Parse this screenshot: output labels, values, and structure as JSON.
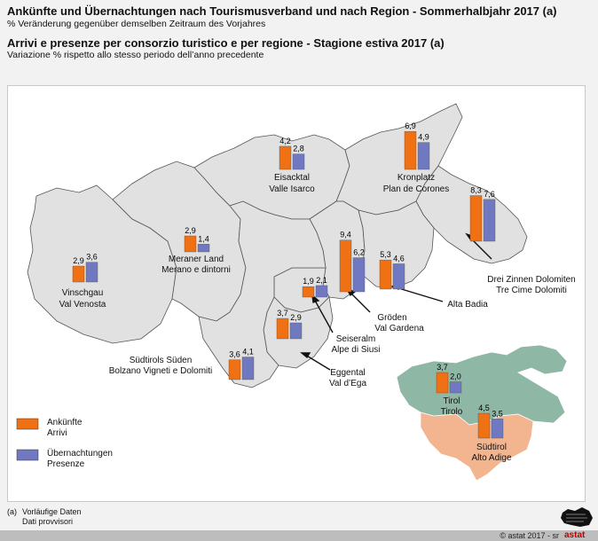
{
  "header": {
    "title_de": "Ankünfte und Übernachtungen nach Tourismusverband und nach Region - Sommerhalbjahr 2017 (a)",
    "subtitle_de": "% Veränderung gegenüber demselben Zeitraum des Vorjahres",
    "title_it": "Arrivi e presenze per consorzio turistico e per regione - Stagione estiva 2017 (a)",
    "subtitle_it": "Variazione % rispetto allo stesso periodo dell’anno precedente"
  },
  "colors": {
    "arrivals": "#f07014",
    "stays": "#7178c2",
    "region_fill": "#e1e1e1",
    "tirol_fill": "#8fb7a5",
    "suedtirol_fill": "#f2b58f"
  },
  "legend": {
    "arrivals_de": "Ankünfte",
    "arrivals_it": "Arrivi",
    "stays_de": "Übernachtungen",
    "stays_it": "Presenze"
  },
  "chart_data": {
    "type": "bar",
    "series_keys": [
      "Ankünfte / Arrivi",
      "Übernachtungen / Presenze"
    ],
    "regions": [
      {
        "id": "vinschgau",
        "label_de": "Vinschgau",
        "label_it": "Val Venosta",
        "arrivals": 2.9,
        "stays": 3.6,
        "arrivals_label": "2,9",
        "stays_label": "3,6"
      },
      {
        "id": "meraner",
        "label_de": "Meraner Land",
        "label_it": "Merano e dintorni",
        "arrivals": 2.9,
        "stays": 1.4,
        "arrivals_label": "2,9",
        "stays_label": "1,4"
      },
      {
        "id": "eisacktal",
        "label_de": "Eisacktal",
        "label_it": "Valle Isarco",
        "arrivals": 4.2,
        "stays": 2.8,
        "arrivals_label": "4,2",
        "stays_label": "2,8"
      },
      {
        "id": "kronplatz",
        "label_de": "Kronplatz",
        "label_it": "Plan de Corones",
        "arrivals": 6.9,
        "stays": 4.9,
        "arrivals_label": "6,9",
        "stays_label": "4,9"
      },
      {
        "id": "dreizinnen",
        "label_de": "Drei Zinnen Dolomiten",
        "label_it": "Tre Cime Dolomiti",
        "arrivals": 8.3,
        "stays": 7.6,
        "arrivals_label": "8,3",
        "stays_label": "7,6"
      },
      {
        "id": "groeden",
        "label_de": "Gröden",
        "label_it": "Val Gardena",
        "arrivals": 9.4,
        "stays": 6.2,
        "arrivals_label": "9,4",
        "stays_label": "6,2"
      },
      {
        "id": "altabadia",
        "label_de": "Alta Badia",
        "label_it": "",
        "arrivals": 5.3,
        "stays": 4.6,
        "arrivals_label": "5,3",
        "stays_label": "4,6"
      },
      {
        "id": "seiseralm",
        "label_de": "Seiseralm",
        "label_it": "Alpe di Siusi",
        "arrivals": 1.9,
        "stays": 2.1,
        "arrivals_label": "1,9",
        "stays_label": "2,1"
      },
      {
        "id": "eggental",
        "label_de": "Eggental",
        "label_it": "Val d’Ega",
        "arrivals": 3.7,
        "stays": 2.9,
        "arrivals_label": "3,7",
        "stays_label": "2,9"
      },
      {
        "id": "suedtirolssueden",
        "label_de": "Südtirols Süden",
        "label_it": "Bolzano Vigneti e Dolomiti",
        "arrivals": 3.6,
        "stays": 4.1,
        "arrivals_label": "3,6",
        "stays_label": "4,1"
      },
      {
        "id": "tirol",
        "label_de": "Tirol",
        "label_it": "Tirolo",
        "arrivals": 3.7,
        "stays": 2.0,
        "arrivals_label": "3,7",
        "stays_label": "2,0"
      },
      {
        "id": "suedtirol",
        "label_de": "Südtirol",
        "label_it": "Alto Adige",
        "arrivals": 4.5,
        "stays": 3.5,
        "arrivals_label": "4,5",
        "stays_label": "3,5"
      }
    ]
  },
  "footnote": {
    "marker": "(a)",
    "line1": "Vorläufige Daten",
    "line2": "Dati provvisori"
  },
  "copyright": "©  astat 2017 - sr",
  "logo_text": "astat"
}
